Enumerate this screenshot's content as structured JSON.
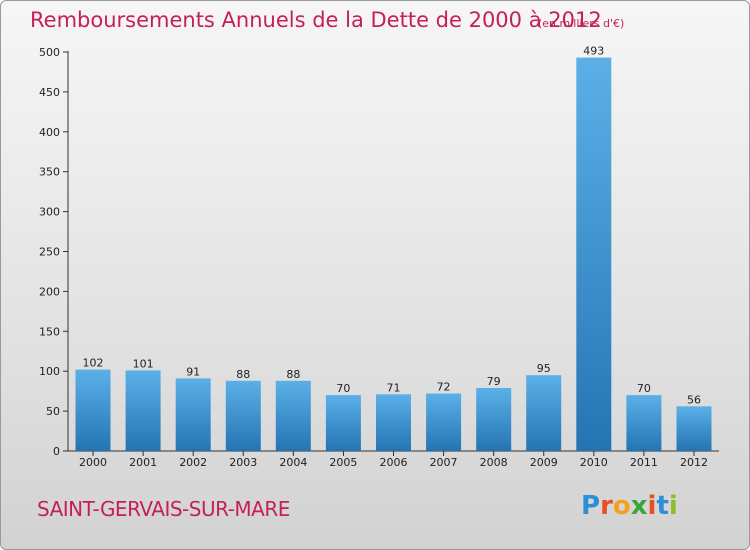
{
  "header": {
    "title": "Remboursements Annuels de la Dette de 2000 à 2012",
    "unit": "(en milliers d'€)"
  },
  "footer": {
    "city": "SAINT-GERVAIS-SUR-MARE",
    "logo_text": "Proxiti",
    "logo_colors": [
      "#2a8fd6",
      "#e94e24",
      "#f2a31b",
      "#3aa63a",
      "#e94e24",
      "#2a8fd6",
      "#8cbf26"
    ]
  },
  "colors": {
    "title": "#c41f5c",
    "bar": "#4aa3e0",
    "bar_dark": "#2474b3"
  },
  "chart_data": {
    "type": "bar",
    "title": "Remboursements Annuels de la Dette de 2000 à 2012",
    "xlabel": "",
    "ylabel": "",
    "categories": [
      "2000",
      "2001",
      "2002",
      "2003",
      "2004",
      "2005",
      "2006",
      "2007",
      "2008",
      "2009",
      "2010",
      "2011",
      "2012"
    ],
    "values": [
      102,
      101,
      91,
      88,
      88,
      70,
      71,
      72,
      79,
      95,
      493,
      70,
      56
    ],
    "ylim": [
      0,
      500
    ],
    "yticks": [
      0,
      50,
      100,
      150,
      200,
      250,
      300,
      350,
      400,
      450,
      500
    ],
    "grid": false,
    "legend": "none"
  }
}
